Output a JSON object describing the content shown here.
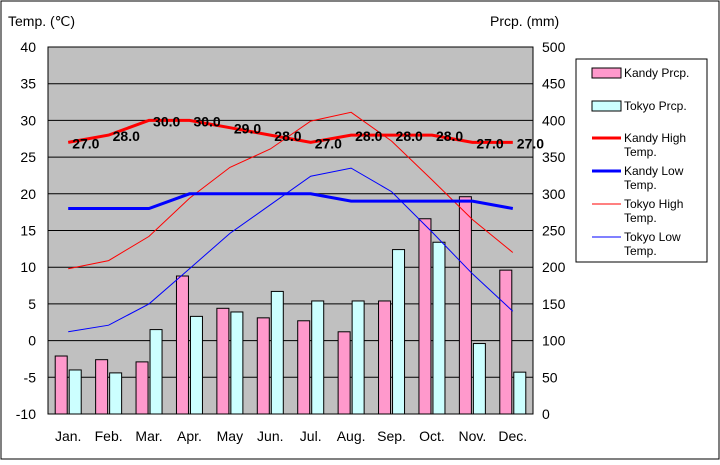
{
  "chart_data": {
    "type": "bar",
    "left_axis_title": "Temp. (℃)",
    "right_axis_title": "Prcp. (mm)",
    "categories": [
      "Jan.",
      "Feb.",
      "Mar.",
      "Apr.",
      "May",
      "Jun.",
      "Jul.",
      "Aug.",
      "Sep.",
      "Oct.",
      "Nov.",
      "Dec."
    ],
    "left_ylim": [
      -10,
      40
    ],
    "left_ticks": [
      "40",
      "35",
      "30",
      "25",
      "20",
      "15",
      "10",
      "5",
      "0",
      "-5",
      "-10"
    ],
    "right_ylim": [
      0,
      500
    ],
    "right_ticks": [
      "500",
      "450",
      "400",
      "350",
      "300",
      "250",
      "200",
      "150",
      "100",
      "50",
      "0"
    ],
    "grid": true,
    "plot_background": "#c0c0c0",
    "legend_position": "right",
    "bar_series": [
      {
        "name": "Kandy Prcp.",
        "color": "#ff99cc",
        "values": [
          79,
          74,
          71,
          188,
          144,
          131,
          127,
          112,
          154,
          266,
          296,
          196
        ]
      },
      {
        "name": "Tokyo Prcp.",
        "color": "#ccffff",
        "values": [
          60,
          56,
          115,
          133,
          139,
          167,
          154,
          154,
          224,
          234,
          96,
          57
        ]
      }
    ],
    "line_series": [
      {
        "name": "Kandy High Temp.",
        "color": "#ff0000",
        "width": 3,
        "values": [
          27,
          28,
          30,
          30,
          29,
          28,
          27,
          28,
          28,
          28,
          27,
          27
        ],
        "labels": [
          "27.0",
          "28.0",
          "30.0",
          "30.0",
          "29.0",
          "28.0",
          "27.0",
          "28.0",
          "28.0",
          "28.0",
          "27.0",
          "27.0"
        ]
      },
      {
        "name": "Kandy Low Temp.",
        "color": "#0000ff",
        "width": 3,
        "values": [
          18,
          18,
          18,
          20,
          20,
          20,
          20,
          19,
          19,
          19,
          19,
          18
        ]
      },
      {
        "name": "Tokyo High Temp.",
        "color": "#ff0000",
        "width": 1,
        "values": [
          9.8,
          10.9,
          14.2,
          19.4,
          23.6,
          26.1,
          29.9,
          31.1,
          27.2,
          21.9,
          16.5,
          12.0
        ]
      },
      {
        "name": "Tokyo Low Temp.",
        "color": "#0000ff",
        "width": 1,
        "values": [
          1.2,
          2.1,
          5.0,
          9.8,
          14.6,
          18.5,
          22.4,
          23.5,
          20.3,
          14.8,
          9.1,
          4.0
        ]
      }
    ]
  }
}
